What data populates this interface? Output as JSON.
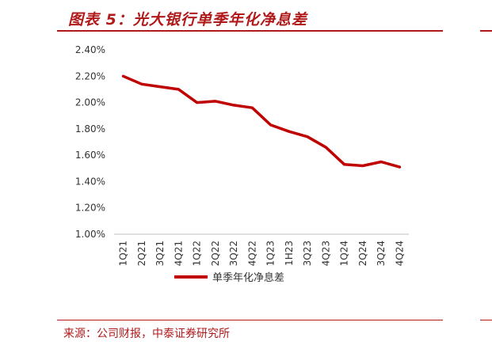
{
  "header": {
    "title": "图表 5：光大银行单季年化净息差"
  },
  "footer": {
    "source": "来源：公司财报，中泰证券研究所"
  },
  "chart_data": {
    "type": "line",
    "categories": [
      "1Q21",
      "2Q21",
      "3Q21",
      "4Q21",
      "1Q22",
      "2Q22",
      "3Q22",
      "4Q22",
      "1Q23",
      "1H23",
      "3Q23",
      "4Q23",
      "1Q24",
      "2Q24",
      "3Q24",
      "4Q24"
    ],
    "series": [
      {
        "name": "单季年化净息差",
        "values": [
          2.2,
          2.14,
          2.12,
          2.1,
          2.0,
          2.01,
          1.98,
          1.96,
          1.83,
          1.78,
          1.74,
          1.66,
          1.53,
          1.52,
          1.55,
          1.51
        ],
        "color": "#c00000"
      }
    ],
    "title": "",
    "xlabel": "",
    "ylabel": "",
    "ylim": [
      1.0,
      2.4
    ],
    "yticks": [
      1.0,
      1.2,
      1.4,
      1.6,
      1.8,
      2.0,
      2.2,
      2.4
    ],
    "ytick_labels": [
      "1.00%",
      "1.20%",
      "1.40%",
      "1.60%",
      "1.80%",
      "2.00%",
      "2.20%",
      "2.40%"
    ],
    "grid": false,
    "legend": "bottom"
  }
}
